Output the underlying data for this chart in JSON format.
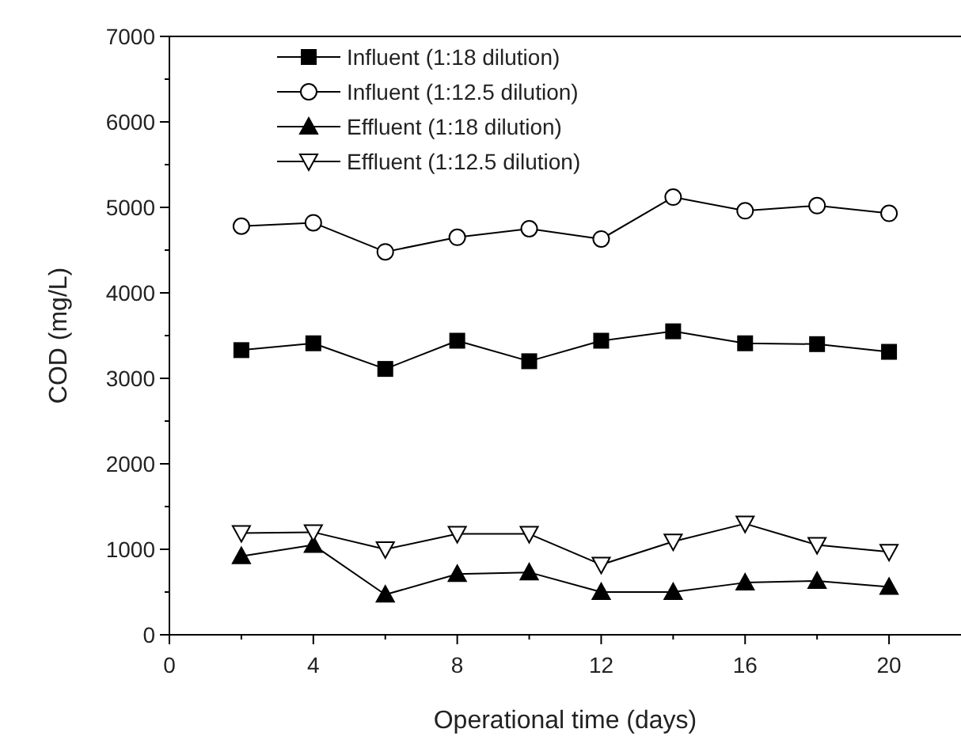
{
  "chart_data": {
    "type": "line",
    "xlabel": "Operational time (days)",
    "ylabel": "COD (mg/L)",
    "x": [
      2,
      4,
      6,
      8,
      10,
      12,
      14,
      16,
      18,
      20
    ],
    "series": [
      {
        "name": "Influent (1:18 dilution)",
        "color": "#000000",
        "marker": "square",
        "values": [
          3330,
          3410,
          3110,
          3440,
          3200,
          3440,
          3550,
          3410,
          3400,
          3310
        ]
      },
      {
        "name": "Influent (1:12.5 dilution)",
        "color": "#000000",
        "marker": "circle",
        "values": [
          4780,
          4820,
          4480,
          4650,
          4750,
          4630,
          5120,
          4960,
          5020,
          4930
        ]
      },
      {
        "name": "Effluent (1:18 dilution)",
        "color": "#000000",
        "marker": "triangle",
        "values": [
          920,
          1050,
          470,
          710,
          730,
          500,
          500,
          610,
          630,
          560
        ]
      },
      {
        "name": "Effluent (1:12.5 dilution)",
        "color": "#000000",
        "marker": "triangle-down",
        "values": [
          1190,
          1200,
          1000,
          1180,
          1180,
          820,
          1090,
          1300,
          1050,
          970
        ]
      }
    ],
    "xlim": [
      0,
      22
    ],
    "xticks": [
      0,
      {
        "value": 2,
        "label": null
      },
      4,
      {
        "value": 6,
        "label": null
      },
      8,
      {
        "value": 10,
        "label": null
      },
      12,
      {
        "value": 14,
        "label": null
      },
      16,
      {
        "value": 18,
        "label": null
      },
      20
    ],
    "ylim": [
      0,
      7000
    ],
    "yticks": [
      0,
      {
        "value": 500,
        "label": null
      },
      1000,
      {
        "value": 1500,
        "label": null
      },
      2000,
      {
        "value": 2500,
        "label": null
      },
      3000,
      {
        "value": 3500,
        "label": null
      },
      4000,
      {
        "value": 4500,
        "label": null
      },
      5000,
      {
        "value": 5500,
        "label": null
      },
      6000,
      {
        "value": 6500,
        "label": null
      },
      7000
    ],
    "legend": "top left",
    "grid": false,
    "line_style": "solid"
  }
}
